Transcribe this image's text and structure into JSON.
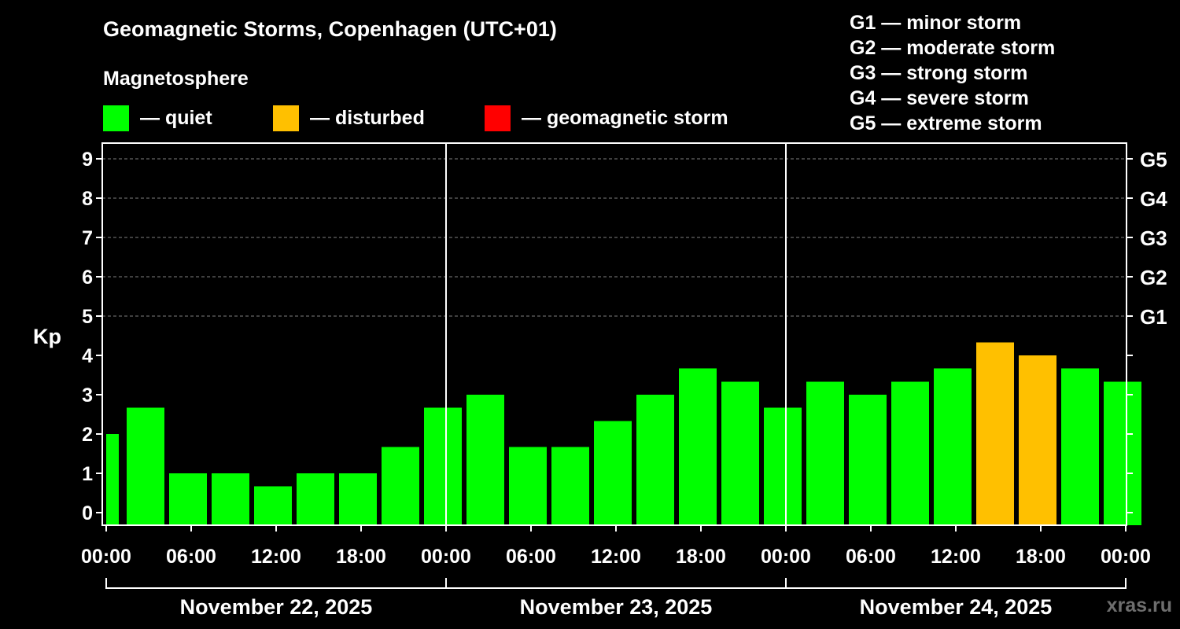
{
  "chart_data": {
    "type": "bar",
    "title": "Geomagnetic Storms, Copenhagen (UTC+01)",
    "ylabel": "Kp",
    "ylim": [
      0,
      9
    ],
    "yticks": [
      "0",
      "1",
      "2",
      "3",
      "4",
      "5",
      "6",
      "7",
      "8",
      "9"
    ],
    "storm_scale": [
      {
        "label": "G1",
        "kp": 5
      },
      {
        "label": "G2",
        "kp": 6
      },
      {
        "label": "G3",
        "kp": 7
      },
      {
        "label": "G4",
        "kp": 8
      },
      {
        "label": "G5",
        "kp": 9
      }
    ],
    "xticks": [
      "00:00",
      "06:00",
      "12:00",
      "18:00",
      "00:00",
      "06:00",
      "12:00",
      "18:00",
      "00:00",
      "06:00",
      "12:00",
      "18:00",
      "00:00"
    ],
    "days": [
      "November 22, 2025",
      "November 23, 2025",
      "November 24, 2025"
    ],
    "values": [
      2.0,
      2.67,
      1.0,
      1.0,
      0.67,
      1.0,
      1.0,
      1.67,
      2.67,
      3.0,
      1.67,
      1.67,
      2.33,
      3.0,
      3.67,
      3.33,
      2.67,
      3.33,
      3.0,
      3.33,
      3.67,
      4.33,
      4.0,
      3.67,
      3.33
    ],
    "status": [
      "quiet",
      "quiet",
      "quiet",
      "quiet",
      "quiet",
      "quiet",
      "quiet",
      "quiet",
      "quiet",
      "quiet",
      "quiet",
      "quiet",
      "quiet",
      "quiet",
      "quiet",
      "quiet",
      "quiet",
      "quiet",
      "quiet",
      "quiet",
      "quiet",
      "disturbed",
      "disturbed",
      "quiet",
      "quiet"
    ],
    "grid": true
  },
  "legend": {
    "heading": "Magnetosphere",
    "items": [
      {
        "key": "quiet",
        "label": "— quiet",
        "color": "#00ff00"
      },
      {
        "key": "disturbed",
        "label": "— disturbed",
        "color": "#ffc000"
      },
      {
        "key": "storm",
        "label": "— geomagnetic storm",
        "color": "#ff0000"
      }
    ]
  },
  "storm_legend": [
    "G1 — minor storm",
    "G2 — moderate storm",
    "G3 — strong storm",
    "G4 — severe storm",
    "G5 — extreme storm"
  ],
  "colors": {
    "quiet": "#00ff00",
    "disturbed": "#ffc000",
    "storm": "#ff0000",
    "axis": "#ffffff",
    "grid": "#808080"
  },
  "watermark": "xras.ru"
}
